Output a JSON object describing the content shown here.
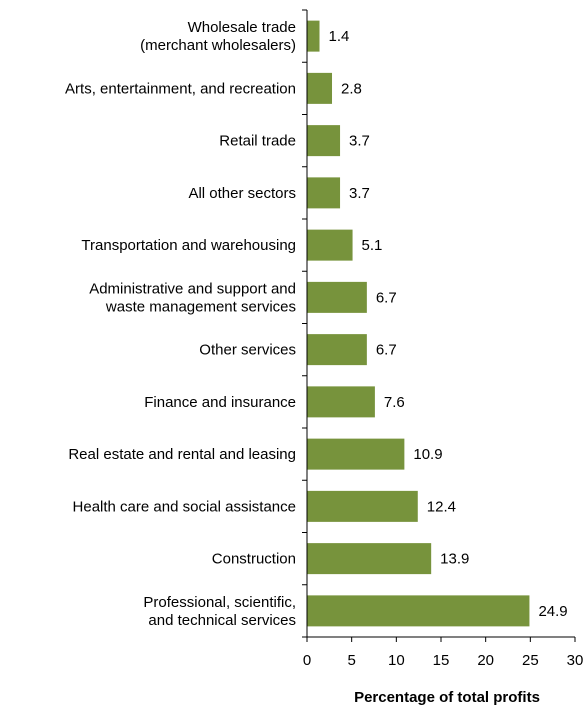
{
  "chart_data": {
    "type": "bar",
    "orientation": "horizontal",
    "title": "",
    "xlabel": "Percentage of total profits",
    "ylabel": "",
    "xlim": [
      0,
      30
    ],
    "x_ticks": [
      0,
      5,
      10,
      15,
      20,
      25,
      30
    ],
    "grid": false,
    "legend": "none",
    "bar_color": "#77933c",
    "categories": [
      [
        "Wholesale trade",
        "(merchant wholesalers)"
      ],
      [
        "Arts, entertainment, and recreation"
      ],
      [
        "Retail trade"
      ],
      [
        "All other sectors"
      ],
      [
        "Transportation and warehousing"
      ],
      [
        "Administrative and support and",
        "waste management services"
      ],
      [
        "Other services"
      ],
      [
        "Finance and insurance"
      ],
      [
        "Real estate and rental and leasing"
      ],
      [
        "Health care and social assistance"
      ],
      [
        "Construction"
      ],
      [
        "Professional, scientific,",
        "and technical services"
      ]
    ],
    "values": [
      1.4,
      2.8,
      3.7,
      3.7,
      5.1,
      6.7,
      6.7,
      7.6,
      10.9,
      12.4,
      13.9,
      24.9
    ],
    "data_labels": [
      "1.4",
      "2.8",
      "3.7",
      "3.7",
      "5.1",
      "6.7",
      "6.7",
      "7.6",
      "10.9",
      "12.4",
      "13.9",
      "24.9"
    ]
  }
}
